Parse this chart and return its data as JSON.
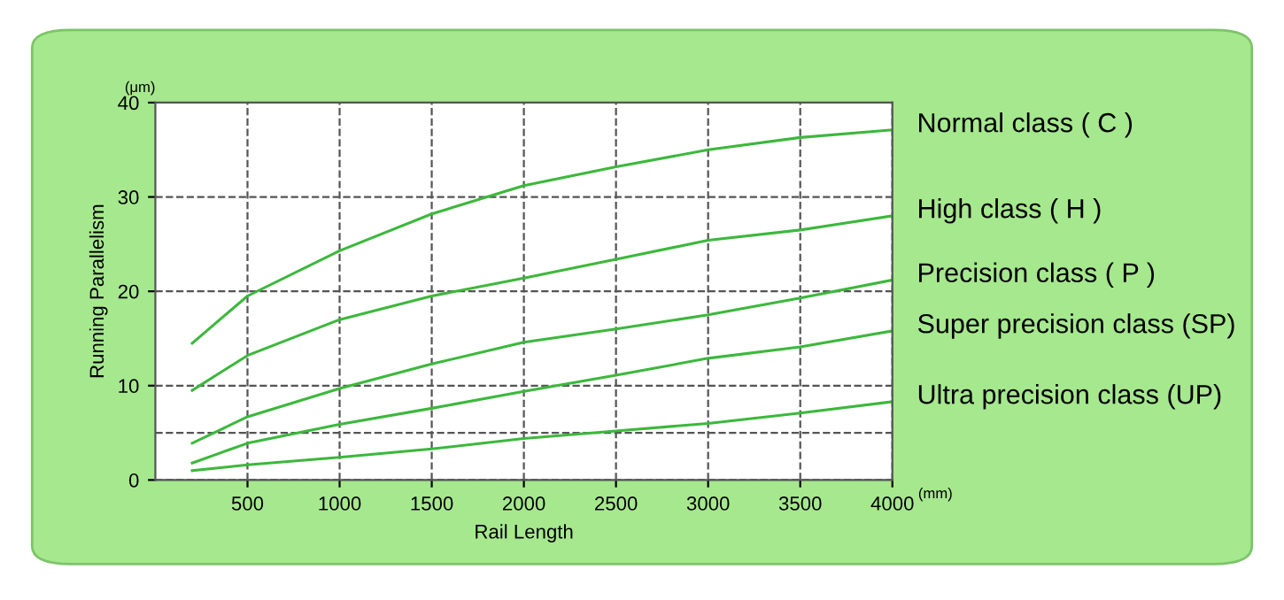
{
  "chart_data": {
    "type": "line",
    "xlabel": "Rail Length",
    "ylabel": "Running Parallelism",
    "annotations": [
      "(μm)",
      "(mm)"
    ],
    "x": [
      200,
      500,
      1000,
      1500,
      2000,
      2500,
      3000,
      3500,
      4000
    ],
    "series": [
      {
        "name": "Normal class ( C )",
        "color": "#3cb83c",
        "values": [
          14.5,
          19.5,
          24.3,
          28.2,
          31.2,
          33.2,
          35.0,
          36.3,
          37.1
        ]
      },
      {
        "name": "High class ( H )",
        "color": "#3cb83c",
        "values": [
          9.5,
          13.2,
          17.0,
          19.5,
          21.4,
          23.4,
          25.4,
          26.5,
          28.0
        ]
      },
      {
        "name": "Precision class ( P )",
        "color": "#3cb83c",
        "values": [
          3.9,
          6.7,
          9.7,
          12.3,
          14.6,
          16.0,
          17.5,
          19.3,
          21.2
        ]
      },
      {
        "name": "Super precision class (SP)",
        "color": "#3cb83c",
        "values": [
          1.8,
          3.9,
          5.9,
          7.6,
          9.4,
          11.1,
          12.9,
          14.1,
          15.8
        ]
      },
      {
        "name": "Ultra precision class (UP)",
        "color": "#3cb83c",
        "values": [
          1.0,
          1.6,
          2.4,
          3.3,
          4.4,
          5.2,
          6.0,
          7.1,
          8.3
        ]
      }
    ],
    "xlim": [
      0,
      4000
    ],
    "xticks": [
      500,
      1000,
      1500,
      2000,
      2500,
      3000,
      3500,
      4000
    ],
    "ylim": [
      0,
      40
    ],
    "yticks": [
      0,
      10,
      20,
      30,
      40
    ],
    "ref_lines": [
      {
        "axis": "y",
        "value": 5,
        "label": null,
        "line_style": "dashed",
        "color": "#555555"
      }
    ],
    "grid": true,
    "line_style": "solid",
    "marker": "none",
    "legend": false
  }
}
